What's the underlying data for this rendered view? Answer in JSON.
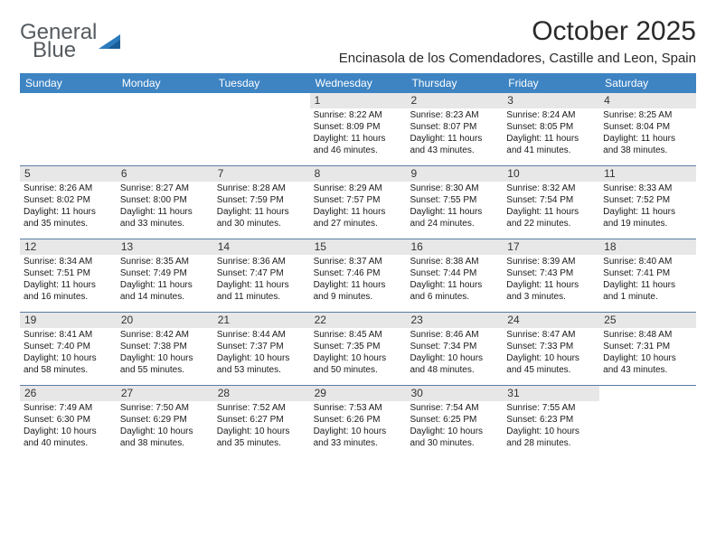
{
  "logo": {
    "word1": "General",
    "word2": "Blue"
  },
  "title": "October 2025",
  "location": "Encinasola de los Comendadores, Castille and Leon, Spain",
  "colors": {
    "header_bg": "#3e84c3",
    "header_text": "#ffffff",
    "daynum_bg": "#e7e7e7",
    "week_divider": "#5a7da6",
    "logo_gray": "#555b60",
    "logo_blue": "#2b7bbd",
    "body_text": "#1a1a1a"
  },
  "weekdays": [
    "Sunday",
    "Monday",
    "Tuesday",
    "Wednesday",
    "Thursday",
    "Friday",
    "Saturday"
  ],
  "weeks": [
    [
      null,
      null,
      null,
      {
        "n": "1",
        "sr": "8:22 AM",
        "ss": "8:09 PM",
        "dl": "11 hours and 46 minutes."
      },
      {
        "n": "2",
        "sr": "8:23 AM",
        "ss": "8:07 PM",
        "dl": "11 hours and 43 minutes."
      },
      {
        "n": "3",
        "sr": "8:24 AM",
        "ss": "8:05 PM",
        "dl": "11 hours and 41 minutes."
      },
      {
        "n": "4",
        "sr": "8:25 AM",
        "ss": "8:04 PM",
        "dl": "11 hours and 38 minutes."
      }
    ],
    [
      {
        "n": "5",
        "sr": "8:26 AM",
        "ss": "8:02 PM",
        "dl": "11 hours and 35 minutes."
      },
      {
        "n": "6",
        "sr": "8:27 AM",
        "ss": "8:00 PM",
        "dl": "11 hours and 33 minutes."
      },
      {
        "n": "7",
        "sr": "8:28 AM",
        "ss": "7:59 PM",
        "dl": "11 hours and 30 minutes."
      },
      {
        "n": "8",
        "sr": "8:29 AM",
        "ss": "7:57 PM",
        "dl": "11 hours and 27 minutes."
      },
      {
        "n": "9",
        "sr": "8:30 AM",
        "ss": "7:55 PM",
        "dl": "11 hours and 24 minutes."
      },
      {
        "n": "10",
        "sr": "8:32 AM",
        "ss": "7:54 PM",
        "dl": "11 hours and 22 minutes."
      },
      {
        "n": "11",
        "sr": "8:33 AM",
        "ss": "7:52 PM",
        "dl": "11 hours and 19 minutes."
      }
    ],
    [
      {
        "n": "12",
        "sr": "8:34 AM",
        "ss": "7:51 PM",
        "dl": "11 hours and 16 minutes."
      },
      {
        "n": "13",
        "sr": "8:35 AM",
        "ss": "7:49 PM",
        "dl": "11 hours and 14 minutes."
      },
      {
        "n": "14",
        "sr": "8:36 AM",
        "ss": "7:47 PM",
        "dl": "11 hours and 11 minutes."
      },
      {
        "n": "15",
        "sr": "8:37 AM",
        "ss": "7:46 PM",
        "dl": "11 hours and 9 minutes."
      },
      {
        "n": "16",
        "sr": "8:38 AM",
        "ss": "7:44 PM",
        "dl": "11 hours and 6 minutes."
      },
      {
        "n": "17",
        "sr": "8:39 AM",
        "ss": "7:43 PM",
        "dl": "11 hours and 3 minutes."
      },
      {
        "n": "18",
        "sr": "8:40 AM",
        "ss": "7:41 PM",
        "dl": "11 hours and 1 minute."
      }
    ],
    [
      {
        "n": "19",
        "sr": "8:41 AM",
        "ss": "7:40 PM",
        "dl": "10 hours and 58 minutes."
      },
      {
        "n": "20",
        "sr": "8:42 AM",
        "ss": "7:38 PM",
        "dl": "10 hours and 55 minutes."
      },
      {
        "n": "21",
        "sr": "8:44 AM",
        "ss": "7:37 PM",
        "dl": "10 hours and 53 minutes."
      },
      {
        "n": "22",
        "sr": "8:45 AM",
        "ss": "7:35 PM",
        "dl": "10 hours and 50 minutes."
      },
      {
        "n": "23",
        "sr": "8:46 AM",
        "ss": "7:34 PM",
        "dl": "10 hours and 48 minutes."
      },
      {
        "n": "24",
        "sr": "8:47 AM",
        "ss": "7:33 PM",
        "dl": "10 hours and 45 minutes."
      },
      {
        "n": "25",
        "sr": "8:48 AM",
        "ss": "7:31 PM",
        "dl": "10 hours and 43 minutes."
      }
    ],
    [
      {
        "n": "26",
        "sr": "7:49 AM",
        "ss": "6:30 PM",
        "dl": "10 hours and 40 minutes."
      },
      {
        "n": "27",
        "sr": "7:50 AM",
        "ss": "6:29 PM",
        "dl": "10 hours and 38 minutes."
      },
      {
        "n": "28",
        "sr": "7:52 AM",
        "ss": "6:27 PM",
        "dl": "10 hours and 35 minutes."
      },
      {
        "n": "29",
        "sr": "7:53 AM",
        "ss": "6:26 PM",
        "dl": "10 hours and 33 minutes."
      },
      {
        "n": "30",
        "sr": "7:54 AM",
        "ss": "6:25 PM",
        "dl": "10 hours and 30 minutes."
      },
      {
        "n": "31",
        "sr": "7:55 AM",
        "ss": "6:23 PM",
        "dl": "10 hours and 28 minutes."
      },
      null
    ]
  ],
  "labels": {
    "sunrise": "Sunrise:",
    "sunset": "Sunset:",
    "daylight": "Daylight:"
  }
}
